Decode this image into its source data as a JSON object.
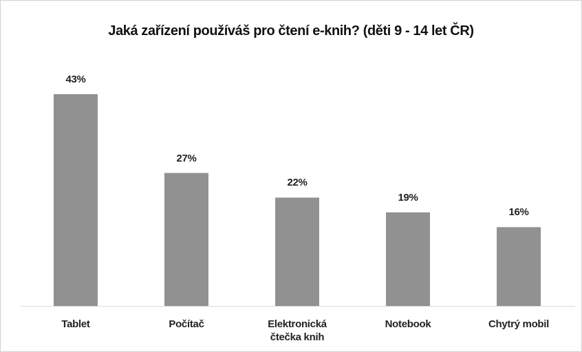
{
  "chart_data": {
    "type": "bar",
    "title": "Jaká zařízení používáš pro čtení e-knih? (děti 9 - 14 let ČR)",
    "categories": [
      "Tablet",
      "Počítač",
      "Elektronická čtečka knih",
      "Notebook",
      "Chytrý mobil"
    ],
    "values": [
      43,
      27,
      22,
      19,
      16
    ],
    "value_labels": [
      "43%",
      "27%",
      "22%",
      "19%",
      "16%"
    ],
    "color": "#919191"
  }
}
